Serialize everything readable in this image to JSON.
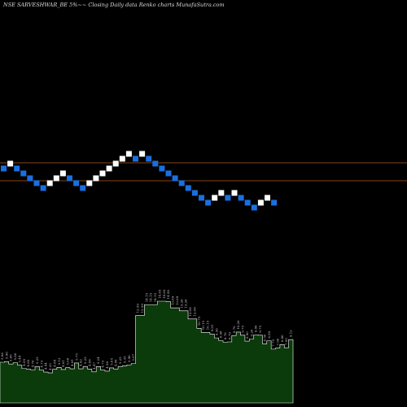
{
  "header": {
    "text": "NSE SARVESHWAR_BE 5%~~ Closing Daily data  Renko  charts MunafaSutra.com"
  },
  "colors": {
    "background": "#000000",
    "up_brick": "#ffffff",
    "down_brick": "#1a6fe0",
    "reference_lines": "#b35a1f",
    "volume_fill": "#0b3a0b",
    "volume_stroke": "#ffffff"
  },
  "chart_data": [
    {
      "type": "renko",
      "brick_size_percent": 5,
      "bricks": [
        "down",
        "up",
        "down",
        "down",
        "down",
        "down",
        "down",
        "up",
        "up",
        "up",
        "down",
        "down",
        "down",
        "up",
        "up",
        "up",
        "up",
        "up",
        "up",
        "up",
        "down",
        "up",
        "down",
        "down",
        "down",
        "down",
        "down",
        "down",
        "down",
        "down",
        "down",
        "down",
        "up",
        "up",
        "down",
        "up",
        "down",
        "down",
        "down",
        "up",
        "up",
        "down"
      ],
      "reference_lines": 2
    },
    {
      "type": "area",
      "labels": [
        "5.86",
        "5.96",
        "5.60",
        "5.80",
        "5.44",
        "4.95",
        "4.85",
        "4.76",
        "5.25",
        "4.73",
        "4.44",
        "4.33",
        "4.84",
        "5.12",
        "4.81",
        "5.08",
        "4.91",
        "5.75",
        "4.92",
        "5.25",
        "4.89",
        "4.47",
        "5.24",
        "4.73",
        "4.58",
        "5.05",
        "4.88",
        "5.25",
        "5.35",
        "5.48",
        "5.67",
        "12.59",
        "12.59",
        "14.15",
        "14.15",
        "14.15",
        "14.65",
        "14.65",
        "14.58",
        "13.69",
        "13.69",
        "13.26",
        "13.26",
        "12.09",
        "12.09",
        "10.75",
        "10.15",
        "10.15",
        "9.91",
        "9.36",
        "8.98",
        "8.76",
        "8.79",
        "9.70",
        "10.20",
        "9.75",
        "8.90",
        "9.20",
        "9.80",
        "9.75",
        "8.50",
        "8.95",
        "7.75",
        "7.90",
        "8.40",
        "7.95",
        "9.12"
      ],
      "values": [
        5.86,
        5.96,
        5.6,
        5.8,
        5.44,
        4.95,
        4.85,
        4.76,
        5.25,
        4.73,
        4.44,
        4.33,
        4.84,
        5.12,
        4.81,
        5.08,
        4.91,
        5.75,
        4.92,
        5.25,
        4.89,
        4.47,
        5.24,
        4.73,
        4.58,
        5.05,
        4.88,
        5.25,
        5.35,
        5.48,
        5.67,
        12.59,
        12.59,
        14.15,
        14.15,
        14.15,
        14.65,
        14.65,
        14.58,
        13.69,
        13.69,
        13.26,
        13.26,
        12.09,
        12.09,
        10.75,
        10.15,
        10.15,
        9.91,
        9.36,
        8.98,
        8.76,
        8.79,
        9.7,
        10.2,
        9.75,
        8.9,
        9.2,
        9.8,
        9.75,
        8.5,
        8.95,
        7.75,
        7.9,
        8.4,
        7.95,
        9.12
      ]
    }
  ]
}
